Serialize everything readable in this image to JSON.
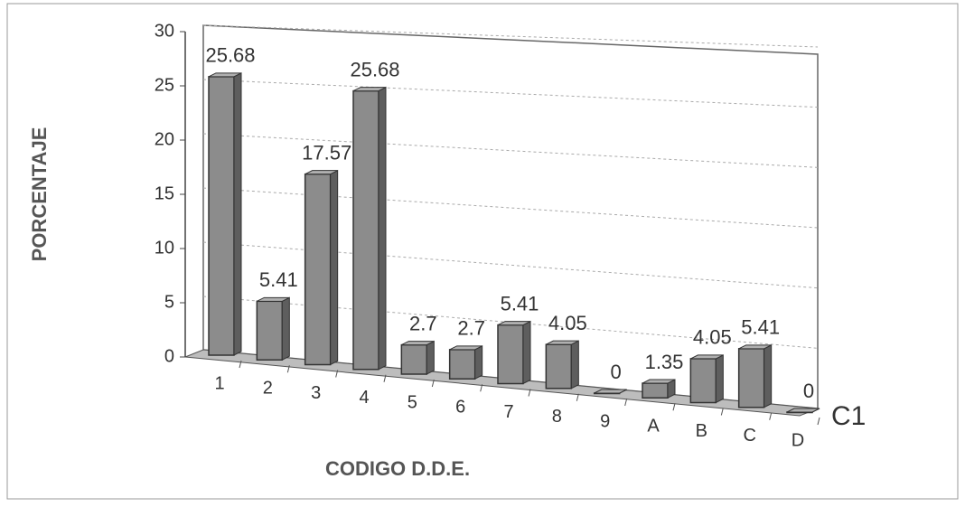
{
  "chart_data": {
    "type": "bar",
    "categories": [
      "1",
      "2",
      "3",
      "4",
      "5",
      "6",
      "7",
      "8",
      "9",
      "A",
      "B",
      "C",
      "D"
    ],
    "series": [
      {
        "name": "C1",
        "color": "#8c8c8c",
        "values": [
          25.68,
          5.41,
          17.57,
          25.68,
          2.7,
          2.7,
          5.41,
          4.05,
          0,
          1.35,
          4.05,
          5.41,
          0
        ]
      }
    ],
    "y_label": "PORCENTAJE",
    "x_label": "CODIGO D.D.E.",
    "ylim": [
      0,
      30
    ],
    "yticks": [
      0,
      5,
      10,
      15,
      20,
      25,
      30
    ],
    "grid": true
  }
}
